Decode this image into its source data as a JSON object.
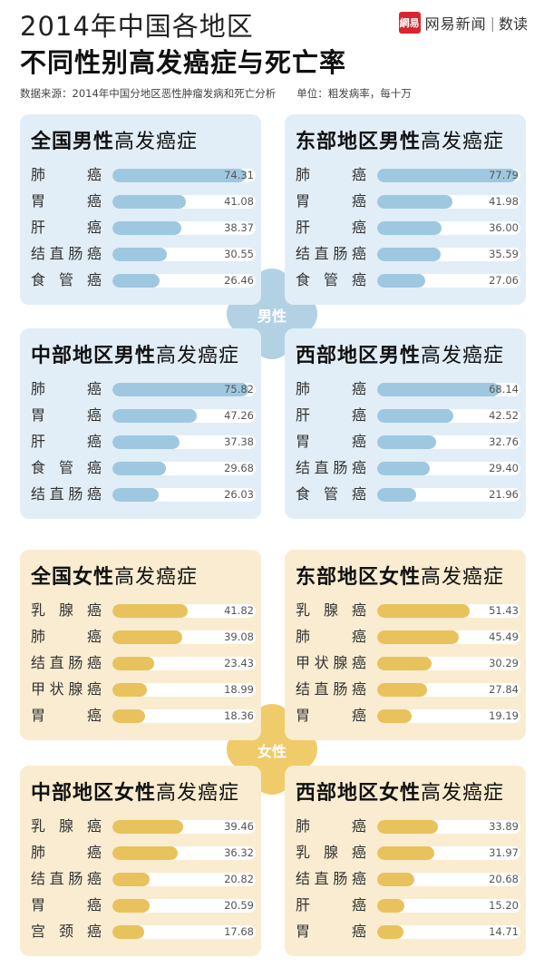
{
  "header": {
    "title_line1": "2014年中国各地区",
    "title_line2": "不同性别高发癌症与死亡率",
    "source": "数据来源：2014年中国分地区恶性肿瘤发病和死亡分析　　单位：粗发病率，每十万",
    "logo_mark": "網易",
    "logo_name": "网易新闻",
    "logo_section": "数读"
  },
  "colors": {
    "male_card": "#e1eef7",
    "male_bar": "#9ec8e0",
    "male_cross": "#b2d2e4",
    "female_card": "#faecd0",
    "female_bar": "#e8c25d",
    "female_cross": "#f0cb6a"
  },
  "group_labels": {
    "male": "男性",
    "female": "女性"
  },
  "chart_data": [
    {
      "type": "bar",
      "group": "male",
      "title_bold": "全国男性",
      "title_rest": "高发癌症",
      "categories": [
        "肺癌",
        "胃癌",
        "肝癌",
        "结直肠癌",
        "食管癌"
      ],
      "values": [
        74.31,
        41.08,
        38.37,
        30.55,
        26.46
      ],
      "xlim": [
        0,
        80
      ]
    },
    {
      "type": "bar",
      "group": "male",
      "title_bold": "东部地区男性",
      "title_rest": "高发癌症",
      "categories": [
        "肺癌",
        "胃癌",
        "肝癌",
        "结直肠癌",
        "食管癌"
      ],
      "values": [
        77.79,
        41.98,
        36.0,
        35.59,
        27.06
      ],
      "xlim": [
        0,
        80
      ]
    },
    {
      "type": "bar",
      "group": "male",
      "title_bold": "中部地区男性",
      "title_rest": "高发癌症",
      "categories": [
        "肺癌",
        "胃癌",
        "肝癌",
        "食管癌",
        "结直肠癌"
      ],
      "values": [
        75.82,
        47.26,
        37.38,
        29.68,
        26.03
      ],
      "xlim": [
        0,
        80
      ]
    },
    {
      "type": "bar",
      "group": "male",
      "title_bold": "西部地区男性",
      "title_rest": "高发癌症",
      "categories": [
        "肺癌",
        "肝癌",
        "胃癌",
        "结直肠癌",
        "食管癌"
      ],
      "values": [
        68.14,
        42.52,
        32.76,
        29.4,
        21.96
      ],
      "xlim": [
        0,
        80
      ]
    },
    {
      "type": "bar",
      "group": "female",
      "title_bold": "全国女性",
      "title_rest": "高发癌症",
      "categories": [
        "乳腺癌",
        "肺癌",
        "结直肠癌",
        "甲状腺癌",
        "胃癌"
      ],
      "values": [
        41.82,
        39.08,
        23.43,
        18.99,
        18.36
      ],
      "xlim": [
        0,
        80
      ]
    },
    {
      "type": "bar",
      "group": "female",
      "title_bold": "东部地区女性",
      "title_rest": "高发癌症",
      "categories": [
        "乳腺癌",
        "肺癌",
        "甲状腺癌",
        "结直肠癌",
        "胃癌"
      ],
      "values": [
        51.43,
        45.49,
        30.29,
        27.84,
        19.19
      ],
      "xlim": [
        0,
        80
      ]
    },
    {
      "type": "bar",
      "group": "female",
      "title_bold": "中部地区女性",
      "title_rest": "高发癌症",
      "categories": [
        "乳腺癌",
        "肺癌",
        "结直肠癌",
        "胃癌",
        "宫颈癌"
      ],
      "values": [
        39.46,
        36.32,
        20.82,
        20.59,
        17.68
      ],
      "xlim": [
        0,
        80
      ]
    },
    {
      "type": "bar",
      "group": "female",
      "title_bold": "西部地区女性",
      "title_rest": "高发癌症",
      "categories": [
        "肺癌",
        "乳腺癌",
        "结直肠癌",
        "肝癌",
        "胃癌"
      ],
      "values": [
        33.89,
        31.97,
        20.68,
        15.2,
        14.71
      ],
      "xlim": [
        0,
        80
      ]
    }
  ]
}
